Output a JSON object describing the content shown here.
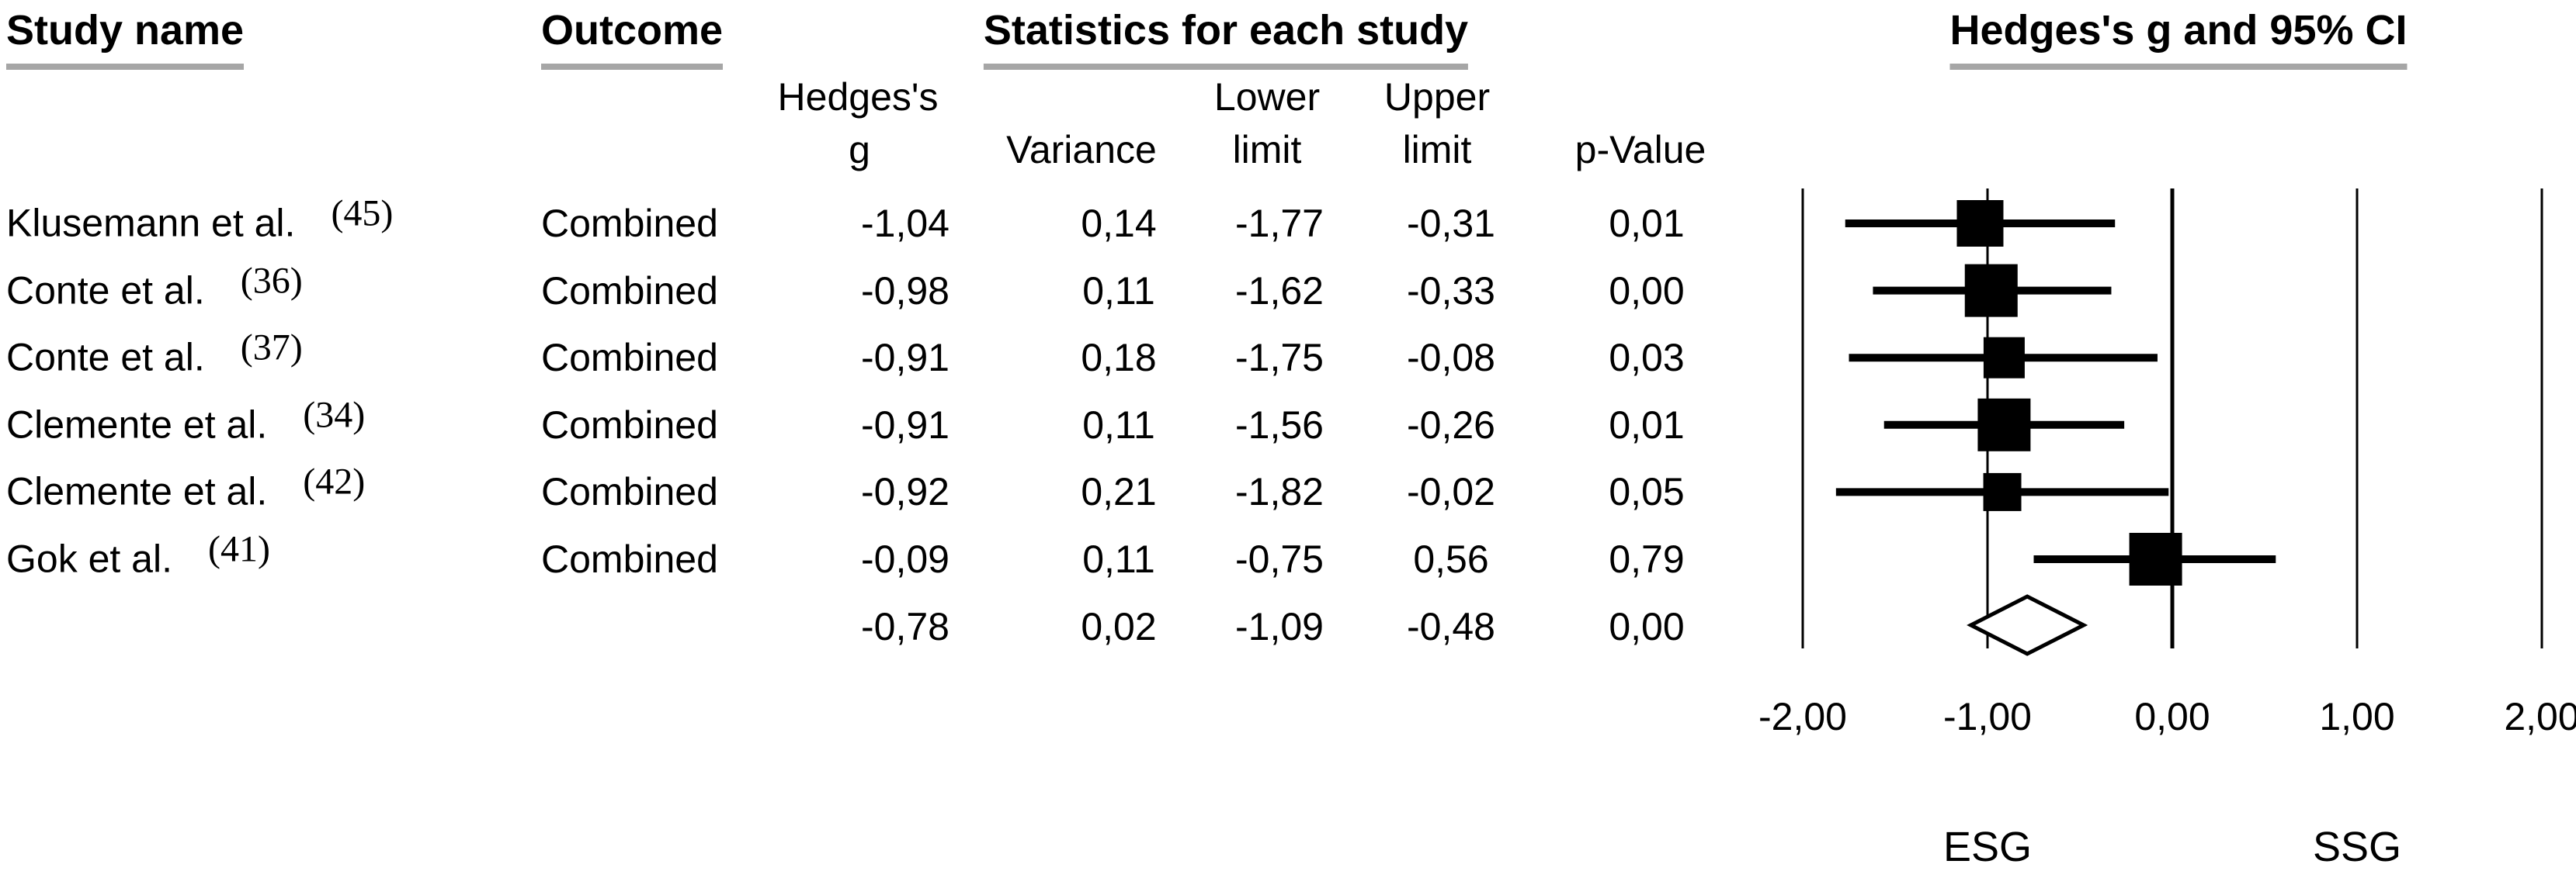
{
  "figure": {
    "headers": {
      "study_name": "Study name",
      "outcome": "Outcome",
      "statistics": "Statistics for each study",
      "plot": "Hedges's g and 95% CI"
    },
    "subheaders": {
      "hedges_line1": "Hedges's",
      "hedges_line2": "g",
      "variance": "Variance",
      "lower_line1": "Lower",
      "lower_line2": "limit",
      "upper_line1": "Upper",
      "upper_line2": "limit",
      "p_value": "p-Value"
    }
  },
  "chart_data": {
    "type": "forest",
    "title": "Hedges's g and 95% CI",
    "effect_measure": "Hedges's g",
    "xlim": [
      -2,
      2
    ],
    "zero_line": 0,
    "grid": "vertical-ticks",
    "x_ticks": [
      {
        "label": "-2,00",
        "value": -2
      },
      {
        "label": "-1,00",
        "value": -1
      },
      {
        "label": "0,00",
        "value": 0
      },
      {
        "label": "1,00",
        "value": 1
      },
      {
        "label": "2,00",
        "value": 2
      }
    ],
    "group_labels": {
      "left": {
        "label": "ESG",
        "value": -1
      },
      "right": {
        "label": "SSG",
        "value": 1
      }
    },
    "rows": [
      {
        "study": "Klusemann et al.",
        "ref": "(45)",
        "outcome": "Combined",
        "g": -1.04,
        "variance": 0.14,
        "lower": -1.77,
        "upper": -0.31,
        "p": 0.01,
        "display": {
          "g": "-1,04",
          "variance": "0,14",
          "lower": "-1,77",
          "upper": "-0,31",
          "p": "0,01"
        }
      },
      {
        "study": "Conte et al.",
        "ref": "(36)",
        "outcome": "Combined",
        "g": -0.98,
        "variance": 0.11,
        "lower": -1.62,
        "upper": -0.33,
        "p": 0.0,
        "display": {
          "g": "-0,98",
          "variance": "0,11",
          "lower": "-1,62",
          "upper": "-0,33",
          "p": "0,00"
        }
      },
      {
        "study": "Conte et al.",
        "ref": "(37)",
        "outcome": "Combined",
        "g": -0.91,
        "variance": 0.18,
        "lower": -1.75,
        "upper": -0.08,
        "p": 0.03,
        "display": {
          "g": "-0,91",
          "variance": "0,18",
          "lower": "-1,75",
          "upper": "-0,08",
          "p": "0,03"
        }
      },
      {
        "study": "Clemente et al.",
        "ref": "(34)",
        "outcome": "Combined",
        "g": -0.91,
        "variance": 0.11,
        "lower": -1.56,
        "upper": -0.26,
        "p": 0.01,
        "display": {
          "g": "-0,91",
          "variance": "0,11",
          "lower": "-1,56",
          "upper": "-0,26",
          "p": "0,01"
        }
      },
      {
        "study": "Clemente et al.",
        "ref": "(42)",
        "outcome": "Combined",
        "g": -0.92,
        "variance": 0.21,
        "lower": -1.82,
        "upper": -0.02,
        "p": 0.05,
        "display": {
          "g": "-0,92",
          "variance": "0,21",
          "lower": "-1,82",
          "upper": "-0,02",
          "p": "0,05"
        }
      },
      {
        "study": "Gok et al.",
        "ref": "(41)",
        "outcome": "Combined",
        "g": -0.09,
        "variance": 0.11,
        "lower": -0.75,
        "upper": 0.56,
        "p": 0.79,
        "display": {
          "g": "-0,09",
          "variance": "0,11",
          "lower": "-0,75",
          "upper": "0,56",
          "p": "0,79"
        }
      }
    ],
    "summary": {
      "g": -0.78,
      "variance": 0.02,
      "lower": -1.09,
      "upper": -0.48,
      "p": 0.0,
      "display": {
        "g": "-0,78",
        "variance": "0,02",
        "lower": "-1,09",
        "upper": "-0,48",
        "p": "0,00"
      }
    },
    "colors": {
      "marker": "#000000",
      "text": "#000000",
      "header_underline": "#a6a6a6",
      "background": "#ffffff"
    }
  }
}
